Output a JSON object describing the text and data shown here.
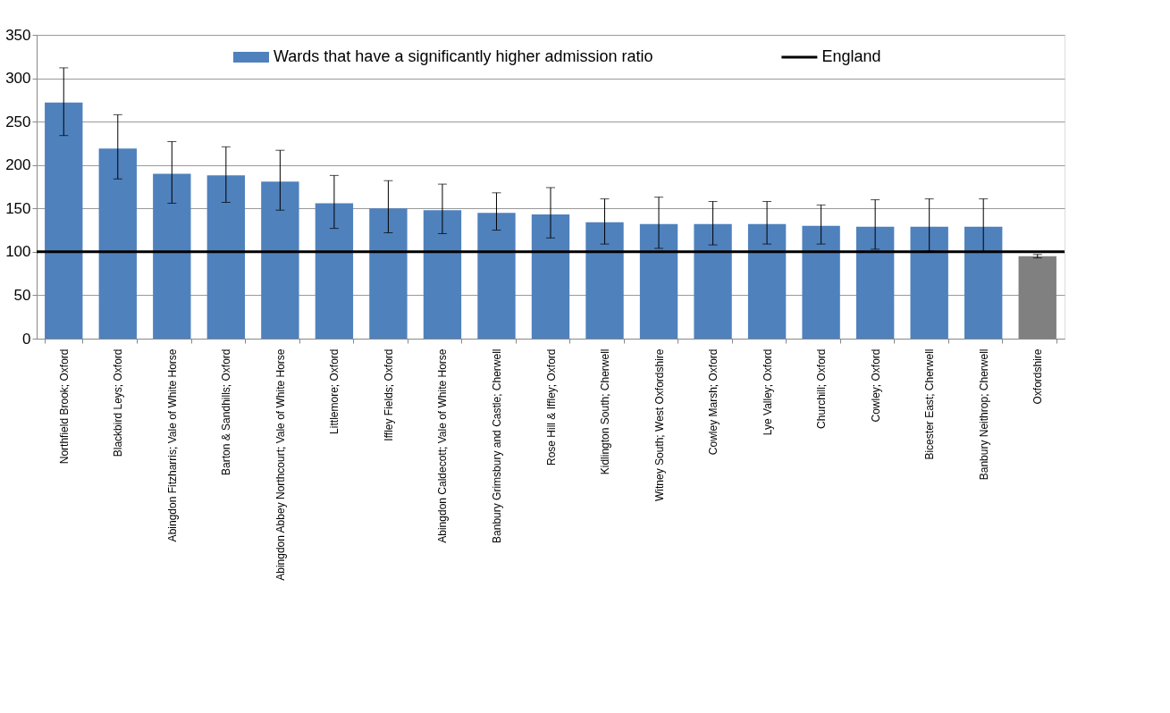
{
  "chart_data": {
    "type": "bar",
    "categories": [
      "Northfield Brook; Oxford",
      "Blackbird Leys; Oxford",
      "Abingdon Fitzharris; Vale of White Horse",
      "Barton & Sandhills; Oxford",
      "Abingdon Abbey Northcourt; Vale of White Horse",
      "Littlemore; Oxford",
      "Iffley Fields; Oxford",
      "Abingdon Caldecott; Vale of White Horse",
      "Banbury Grimsbury and Castle; Cherwell",
      "Rose Hill & Iffley; Oxford",
      "Kidlington South; Cherwell",
      "Witney South; West Oxfordshire",
      "Cowley Marsh; Oxford",
      "Lye Valley; Oxford",
      "Churchill; Oxford",
      "Cowley; Oxford",
      "Bicester East; Cherwell",
      "Banbury Neithrop; Cherwell",
      "Oxfordshire"
    ],
    "series": [
      {
        "name": "Wards that have a significantly higher admission ratio",
        "color": "#4f81bd",
        "colors": [
          "#4f81bd",
          "#4f81bd",
          "#4f81bd",
          "#4f81bd",
          "#4f81bd",
          "#4f81bd",
          "#4f81bd",
          "#4f81bd",
          "#4f81bd",
          "#4f81bd",
          "#4f81bd",
          "#4f81bd",
          "#4f81bd",
          "#4f81bd",
          "#4f81bd",
          "#4f81bd",
          "#4f81bd",
          "#4f81bd",
          "#808080"
        ],
        "values": [
          272,
          219,
          190,
          188,
          181,
          156,
          150,
          148,
          145,
          143,
          134,
          132,
          132,
          132,
          130,
          129,
          129,
          129,
          95
        ],
        "errors": [
          [
            234,
            312
          ],
          [
            184,
            258
          ],
          [
            156,
            227
          ],
          [
            157,
            221
          ],
          [
            148,
            217
          ],
          [
            127,
            188
          ],
          [
            122,
            182
          ],
          [
            121,
            178
          ],
          [
            125,
            168
          ],
          [
            116,
            174
          ],
          [
            109,
            161
          ],
          [
            104,
            163
          ],
          [
            108,
            158
          ],
          [
            109,
            158
          ],
          [
            109,
            154
          ],
          [
            103,
            160
          ],
          [
            101,
            161
          ],
          [
            100,
            161
          ],
          [
            93,
            97
          ]
        ]
      }
    ],
    "ref_lines": [
      {
        "axis": "y",
        "value": 100,
        "label": "England",
        "color": "#000000"
      }
    ],
    "ylim": [
      0,
      350
    ],
    "yticks": [
      0,
      50,
      100,
      150,
      200,
      250,
      300,
      350
    ],
    "grid": "y",
    "legend": "top"
  }
}
